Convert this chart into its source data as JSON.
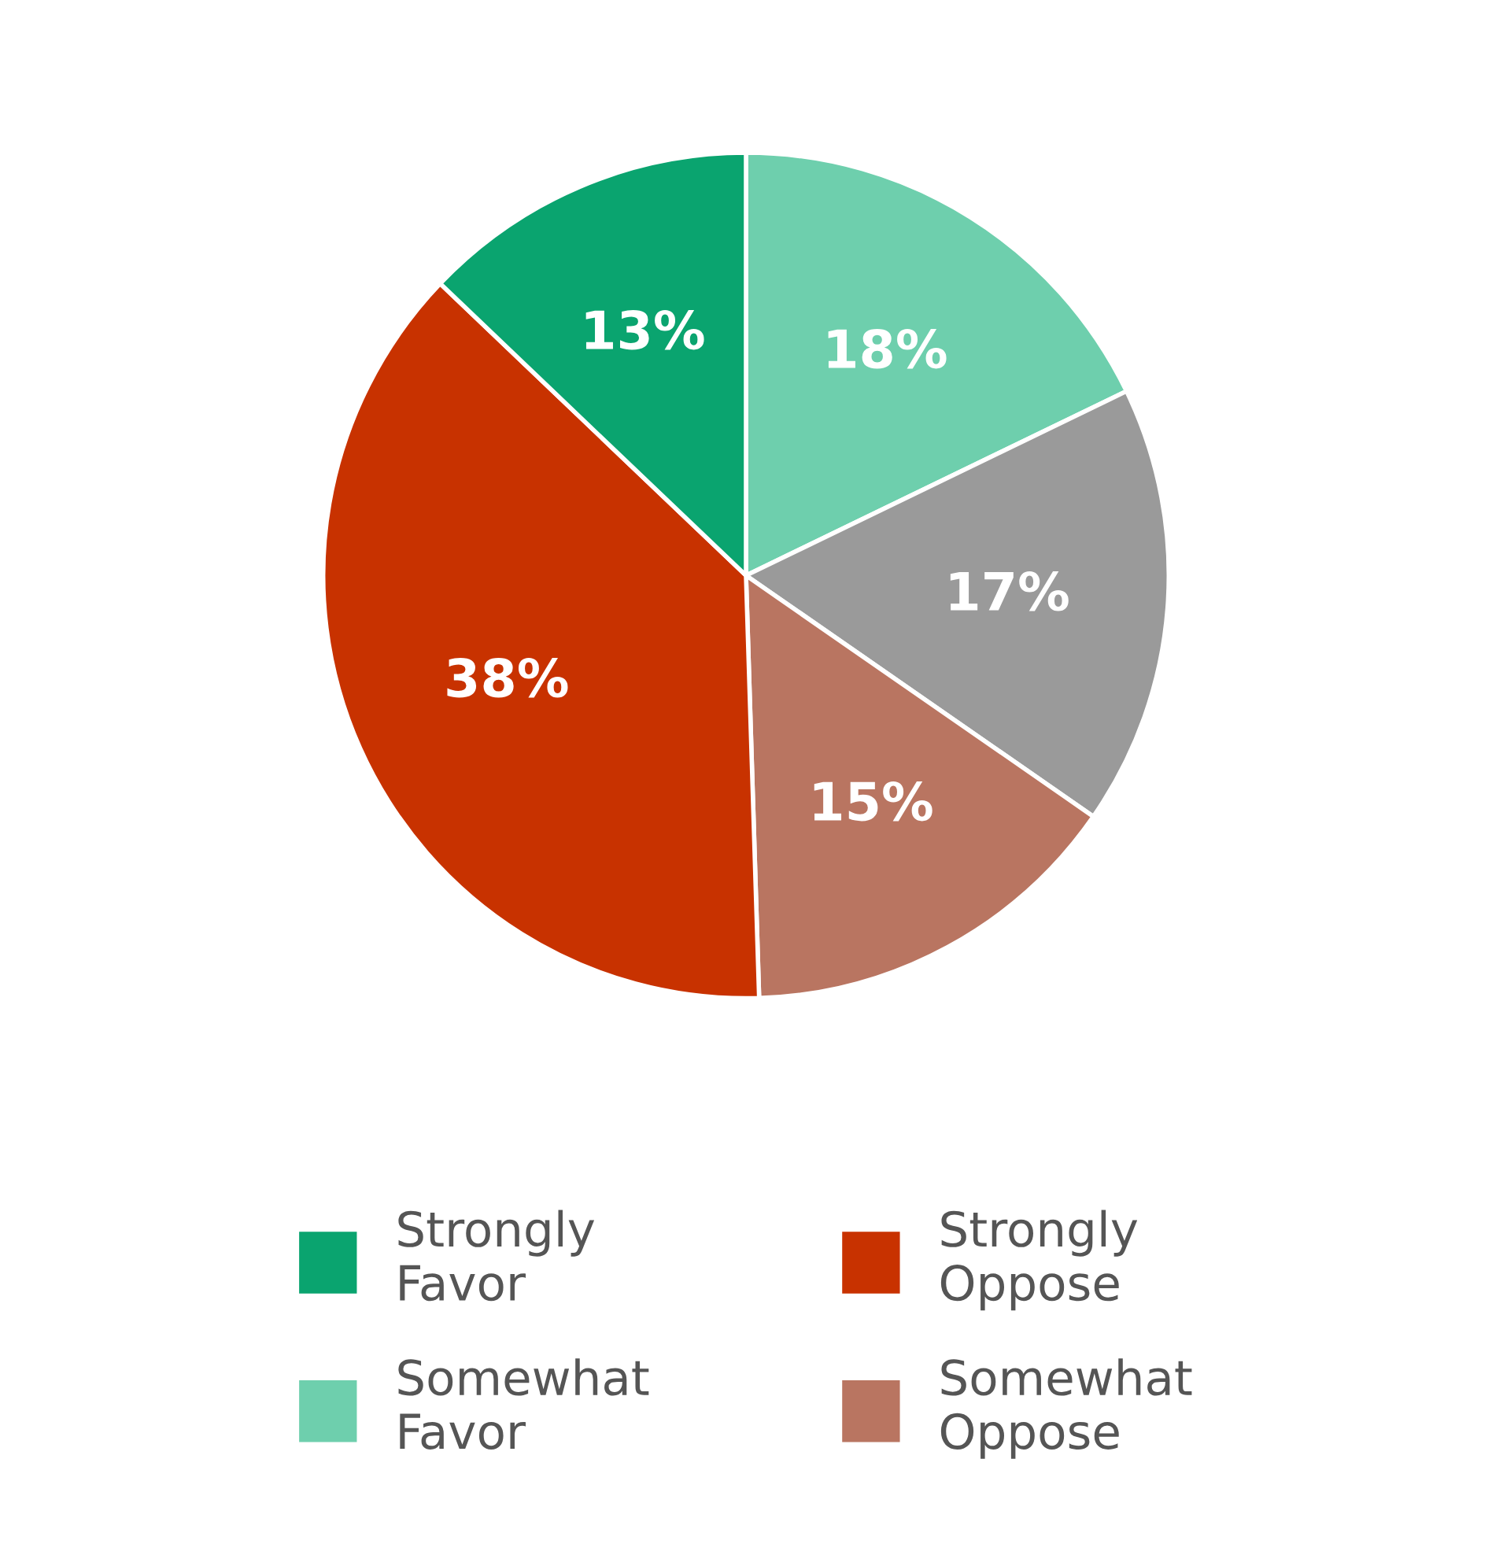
{
  "chart_data": {
    "type": "pie",
    "categories": [
      "Somewhat Favor",
      null,
      "Somewhat Oppose",
      "Strongly Oppose",
      "Strongly Favor"
    ],
    "values": [
      18,
      17,
      15,
      38,
      13
    ],
    "colors": [
      "#6ecfad",
      "#9a9a9a",
      "#b97561",
      "#c83200",
      "#0aa46f"
    ],
    "value_labels": [
      "18%",
      "17%",
      "15%",
      "38%",
      "13%"
    ],
    "legend": "bottom"
  }
}
